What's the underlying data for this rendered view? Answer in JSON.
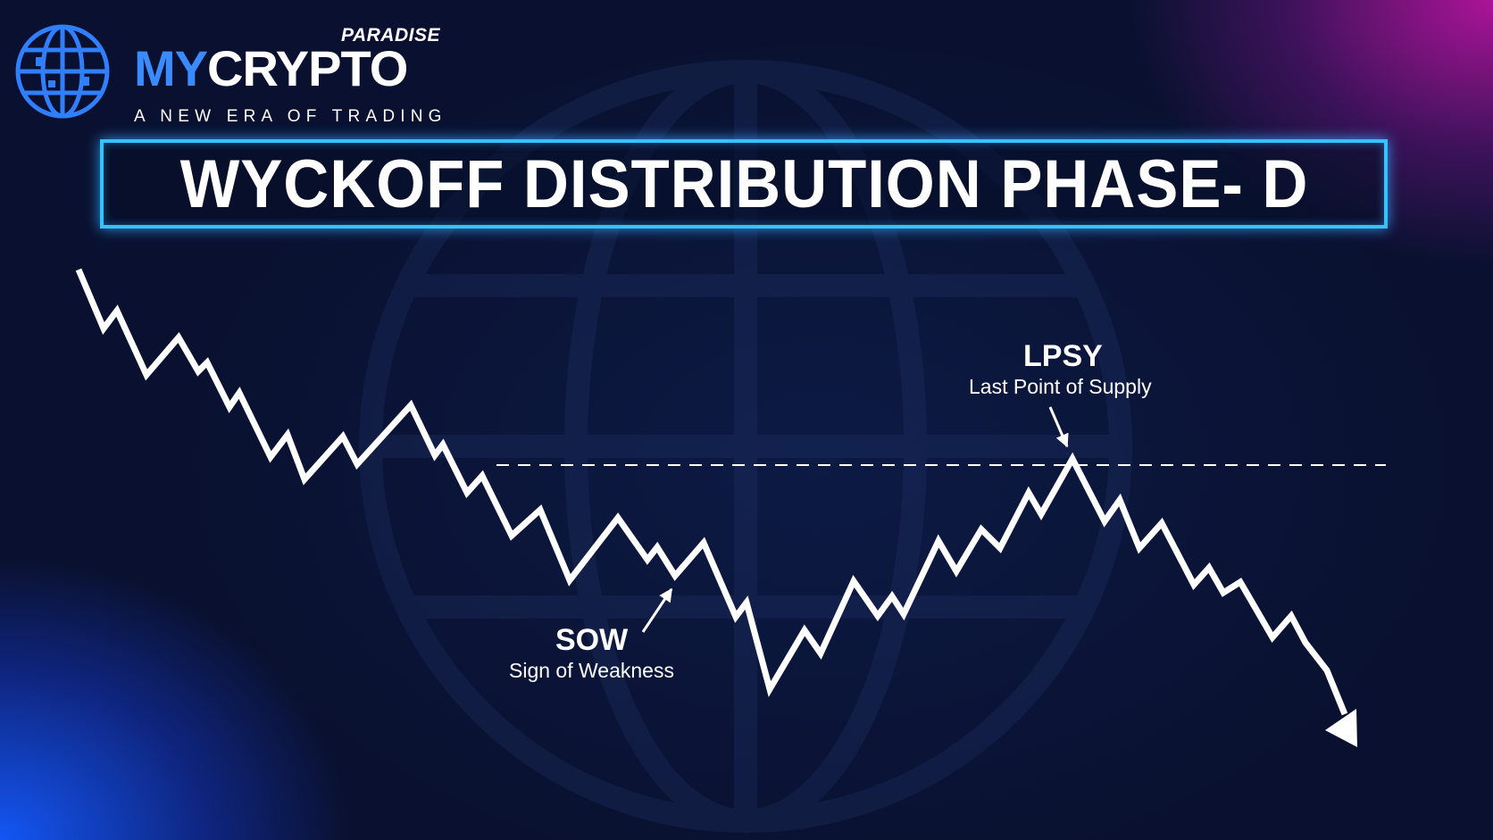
{
  "logo": {
    "paradise": "PARADISE",
    "brand_part1": "MY",
    "brand_part2": "CRYPTO",
    "tagline": "A NEW ERA OF TRADING",
    "icon": "globe-icon"
  },
  "title": "WYCKOFF DISTRIBUTION PHASE- D",
  "annotations": {
    "lpsy": {
      "label": "LPSY",
      "description": "Last Point of Supply"
    },
    "sow": {
      "label": "SOW",
      "description": "Sign of Weakness"
    }
  },
  "colors": {
    "background": "#0b1433",
    "accent_blue": "#3a8bff",
    "title_border": "#35c2ff",
    "line": "#ffffff"
  }
}
